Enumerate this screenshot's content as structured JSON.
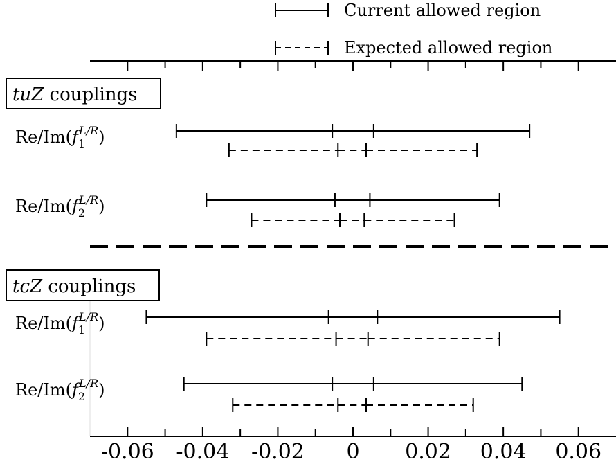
{
  "chart_data": {
    "type": "interval",
    "xlim": [
      -0.07,
      0.07
    ],
    "x_ticks": [
      -0.06,
      -0.04,
      -0.02,
      0,
      0.02,
      0.04,
      0.06
    ],
    "x_tick_labels": [
      "-0.06",
      "-0.04",
      "-0.02",
      "0",
      "0.02",
      "0.04",
      "0.06"
    ],
    "legend": {
      "placement": "top-center",
      "entries": [
        {
          "label": "Current allowed region",
          "style": "solid"
        },
        {
          "label": "Expected allowed region",
          "style": "dashed"
        }
      ]
    },
    "groups": [
      {
        "title_var": "tuZ",
        "title_rest": " couplings",
        "rows": [
          {
            "label_prefix": "Re/Im(",
            "label_base": "f",
            "label_sub": "1",
            "label_sup": "L/R",
            "label_suffix": ")",
            "current": {
              "outer": [
                -0.047,
                0.047
              ],
              "inner": [
                -0.0055,
                0.0055
              ]
            },
            "expected": {
              "outer": [
                -0.033,
                0.033
              ],
              "inner": [
                -0.004,
                0.0035
              ]
            }
          },
          {
            "label_prefix": "Re/Im(",
            "label_base": "f",
            "label_sub": "2",
            "label_sup": "L/R",
            "label_suffix": ")",
            "current": {
              "outer": [
                -0.039,
                0.039
              ],
              "inner": [
                -0.0048,
                0.0045
              ]
            },
            "expected": {
              "outer": [
                -0.027,
                0.027
              ],
              "inner": [
                -0.0035,
                0.003
              ]
            }
          }
        ]
      },
      {
        "title_var": "tcZ",
        "title_rest": " couplings",
        "rows": [
          {
            "label_prefix": "Re/Im(",
            "label_base": "f",
            "label_sub": "1",
            "label_sup": "L/R",
            "label_suffix": ")",
            "current": {
              "outer": [
                -0.055,
                0.055
              ],
              "inner": [
                -0.0065,
                0.0065
              ]
            },
            "expected": {
              "outer": [
                -0.039,
                0.039
              ],
              "inner": [
                -0.0045,
                0.004
              ]
            }
          },
          {
            "label_prefix": "Re/Im(",
            "label_base": "f",
            "label_sub": "2",
            "label_sup": "L/R",
            "label_suffix": ")",
            "current": {
              "outer": [
                -0.045,
                0.045
              ],
              "inner": [
                -0.0055,
                0.0055
              ]
            },
            "expected": {
              "outer": [
                -0.032,
                0.032
              ],
              "inner": [
                -0.004,
                0.0035
              ]
            }
          }
        ]
      }
    ]
  }
}
